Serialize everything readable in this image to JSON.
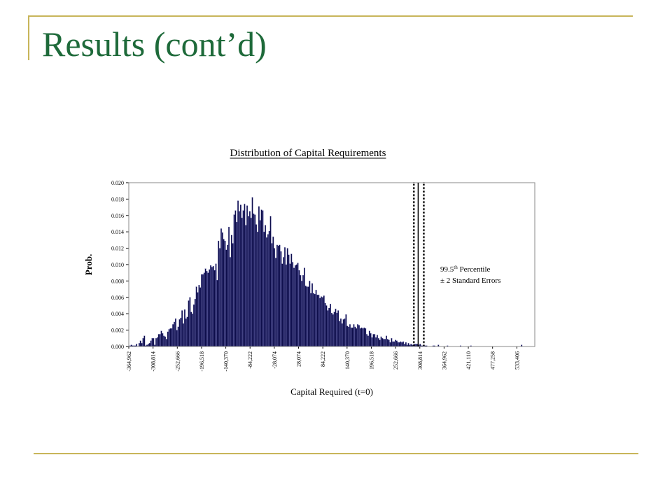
{
  "slide": {
    "title": "Results (cont’d)"
  },
  "colors": {
    "accent_line": "#c8b55a",
    "title": "#1e6a3a",
    "bars": "#0d0d4a",
    "bar_highlight": "#4a4aa0"
  },
  "chart_data": {
    "type": "bar",
    "title": "Distribution of Capital Requirements",
    "xlabel": "Capital Required (t=0)",
    "ylabel": "Prob.",
    "ylim": [
      0,
      0.02
    ],
    "yticks": [
      "0.000",
      "0.002",
      "0.004",
      "0.006",
      "0.008",
      "0.010",
      "0.012",
      "0.014",
      "0.016",
      "0.018",
      "0.020"
    ],
    "xticks": [
      "-364,962",
      "-308,814",
      "-252,666",
      "-196,518",
      "-140,370",
      "-84,222",
      "-28,074",
      "28,074",
      "84,222",
      "140,370",
      "196,518",
      "252,666",
      "308,814",
      "364,962",
      "421,110",
      "477,258",
      "533,406"
    ],
    "x_range": [
      -364962,
      575000
    ],
    "grid": false,
    "percentile_lines": {
      "percentile": 305000,
      "lower_se": 295000,
      "upper_se": 318000
    },
    "annotation": {
      "line1_prefix": "99.5",
      "line1_sup": "th",
      "line1_suffix": " Percentile",
      "line2": "± 2 Standard Errors"
    },
    "bins_x": [
      -361950,
      -358939,
      -355927,
      -352915,
      -349904,
      -346892,
      -343880,
      -340869,
      -337857,
      -334845,
      -331834,
      -328822,
      -325810,
      -322799,
      -319787,
      -316775,
      -313764,
      -310752,
      -307740,
      -304729,
      -301717,
      -298705,
      -295694,
      -292682,
      -289670,
      -286659,
      -283647,
      -280635,
      -277624,
      -274612,
      -271600,
      -268589,
      -265577,
      -262565,
      -259554,
      -256542,
      -253530,
      -250519,
      -247507,
      -244495,
      -241484,
      -238472,
      -235460,
      -232449,
      -229437,
      -226425,
      -223414,
      -220402,
      -217390,
      -214379,
      -211367,
      -208355,
      -205344,
      -202332,
      -199320,
      -196309,
      -193297,
      -190285,
      -187274,
      -184262,
      -181250,
      -178239,
      -175227,
      -172215,
      -169204,
      -166192,
      -163180,
      -160169,
      -157157,
      -154145,
      -151134,
      -148122,
      -145110,
      -142099,
      -139087,
      -136075,
      -133064,
      -130052,
      -127040,
      -124029,
      -121017,
      -118005,
      -114994,
      -111982,
      -108970,
      -105959,
      -102947,
      -99935,
      -96924,
      -93912,
      -90900,
      -87889,
      -84877,
      -81865,
      -78854,
      -75842,
      -72830,
      -69819,
      -66807,
      -63795,
      -60784,
      -57772,
      -54760,
      -51749,
      -48737,
      -45725,
      -42714,
      -39702,
      -36690,
      -33679,
      -30667,
      -27655,
      -24644,
      -21632,
      -18620,
      -15609,
      -12597,
      -9585,
      -6574,
      -3562,
      -550,
      2461,
      5473,
      8485,
      11496,
      14508,
      17520,
      20531,
      23543,
      26555,
      29566,
      32578,
      35590,
      38601,
      41613,
      44625,
      47636,
      50648,
      53660,
      56671,
      59683,
      62695,
      65706,
      68718,
      71730,
      74741,
      77753,
      80765,
      83776,
      86788,
      89800,
      92811,
      95823,
      98835,
      101846,
      104858,
      107870,
      110881,
      113893,
      116905,
      119916,
      122928,
      125940,
      128951,
      131963,
      134975,
      137986,
      140998,
      144010,
      147021,
      150033,
      153045,
      156056,
      159068,
      162080,
      165091,
      168103,
      171115,
      174126,
      177138,
      180150,
      183161,
      186173,
      189185,
      192196,
      195208,
      198220,
      201231,
      204243,
      207255,
      210266,
      213278,
      216290,
      219301,
      222313,
      225325,
      228336,
      231348,
      234360,
      237371,
      240383,
      243395,
      246406,
      249418,
      252430,
      255441,
      258453,
      261465,
      264476,
      267488,
      270500,
      273511,
      276523,
      279535,
      282546,
      285558,
      288570,
      291581,
      294593,
      297605,
      300616,
      303628,
      306640,
      309651,
      312663,
      315675,
      318686,
      321698,
      324710,
      327721,
      330733,
      333745,
      336756,
      339768,
      342780,
      345791,
      348803,
      351815,
      354826,
      357838,
      360850,
      363861,
      366873,
      369885,
      372896,
      375908,
      378920,
      381931,
      384943,
      387955,
      390966,
      393978,
      396990,
      400001,
      403013,
      406025,
      409036,
      412048,
      415060,
      418071,
      421083,
      424095,
      427106,
      430118,
      433130,
      436141,
      439153,
      442165,
      445176,
      448188,
      451200,
      454211,
      457223,
      460235,
      463246,
      466258,
      469270,
      472281,
      475293,
      478305,
      481316,
      484328,
      487340,
      490351,
      493363,
      496375,
      499386,
      502398,
      505410,
      508421,
      511433,
      514445,
      517456,
      520468,
      523480,
      526491,
      529503,
      532515,
      535526,
      538538,
      541550,
      544561,
      547573,
      550585,
      553596,
      556608,
      559620,
      562631,
      565643,
      568655,
      571666
    ],
    "bins_p": [
      0.0001,
      0.0002,
      0.0001,
      0.0001,
      0.0001,
      0.0003,
      0.0,
      0.0004,
      0.0007,
      0.0004,
      0.001,
      0.0013,
      0.0001,
      0.0002,
      0.0003,
      0.0004,
      0.0007,
      0.001,
      0.001,
      0.0002,
      0.001,
      0.0011,
      0.0015,
      0.0015,
      0.0019,
      0.0016,
      0.0013,
      0.0012,
      0.0009,
      0.0018,
      0.0021,
      0.0022,
      0.0022,
      0.0027,
      0.003,
      0.0034,
      0.002,
      0.0024,
      0.0033,
      0.0035,
      0.0044,
      0.0028,
      0.0045,
      0.0034,
      0.0036,
      0.0056,
      0.006,
      0.0042,
      0.004,
      0.0051,
      0.0058,
      0.0073,
      0.0066,
      0.0075,
      0.0072,
      0.0088,
      0.0088,
      0.009,
      0.0095,
      0.0092,
      0.009,
      0.0094,
      0.0099,
      0.0097,
      0.0098,
      0.0093,
      0.0101,
      0.0081,
      0.0129,
      0.012,
      0.0144,
      0.0139,
      0.0131,
      0.0129,
      0.0118,
      0.0124,
      0.0146,
      0.0109,
      0.0136,
      0.0126,
      0.0161,
      0.0166,
      0.0152,
      0.0178,
      0.0165,
      0.0173,
      0.0157,
      0.0166,
      0.0174,
      0.0148,
      0.0172,
      0.0159,
      0.0165,
      0.0157,
      0.0182,
      0.0162,
      0.0161,
      0.0149,
      0.014,
      0.0171,
      0.0154,
      0.0167,
      0.0166,
      0.014,
      0.0148,
      0.0133,
      0.0137,
      0.0141,
      0.0159,
      0.0126,
      0.0134,
      0.012,
      0.0108,
      0.0124,
      0.0123,
      0.0124,
      0.0116,
      0.0101,
      0.0109,
      0.0121,
      0.01,
      0.012,
      0.0112,
      0.0101,
      0.0113,
      0.0103,
      0.0096,
      0.0099,
      0.01,
      0.0102,
      0.0093,
      0.0087,
      0.008,
      0.0087,
      0.0096,
      0.0074,
      0.0073,
      0.0073,
      0.008,
      0.0065,
      0.0077,
      0.0065,
      0.0064,
      0.0069,
      0.0063,
      0.0063,
      0.0059,
      0.0061,
      0.006,
      0.0062,
      0.0053,
      0.005,
      0.0044,
      0.0047,
      0.0052,
      0.0041,
      0.0039,
      0.0042,
      0.0046,
      0.0041,
      0.0044,
      0.0031,
      0.0034,
      0.0028,
      0.0033,
      0.0034,
      0.0039,
      0.0025,
      0.0024,
      0.0027,
      0.0023,
      0.0023,
      0.0027,
      0.0024,
      0.0022,
      0.0027,
      0.0026,
      0.0022,
      0.0023,
      0.0022,
      0.0023,
      0.0022,
      0.0015,
      0.0013,
      0.0019,
      0.0016,
      0.0011,
      0.0015,
      0.0015,
      0.0011,
      0.0014,
      0.001,
      0.0008,
      0.0012,
      0.001,
      0.0009,
      0.0009,
      0.0013,
      0.0009,
      0.0008,
      0.0005,
      0.001,
      0.0006,
      0.0006,
      0.0008,
      0.0007,
      0.0005,
      0.0005,
      0.0006,
      0.0005,
      0.0006,
      0.0003,
      0.0005,
      0.0002,
      0.0004,
      0.0002,
      0.0003,
      0.0002,
      0.0002,
      0.0003,
      0.0003,
      0.0003,
      0.0002,
      0.0003,
      0.0001,
      0.0001,
      0.0001,
      0.0001,
      0.0001,
      0.0,
      0.0,
      0.0,
      0.0,
      0.0001,
      0.0001,
      0.0,
      0.0,
      0.0002,
      0.0,
      0.0,
      0.0,
      0.0,
      0.0,
      0.0,
      0.0001,
      0.0,
      0.0,
      0.0,
      0.0,
      0.0,
      0.0,
      0.0,
      0.0,
      0.0,
      0.0001,
      0.0,
      0.0,
      0.0,
      0.0,
      0.0,
      0.0,
      0.0,
      0.0001,
      0.0,
      0.0,
      0.0,
      0.0,
      0.0,
      0.0,
      0.0,
      0.0,
      0.0,
      0.0,
      0.0,
      0.0,
      0.0,
      0.0,
      0.0,
      0.0,
      0.0,
      0.0,
      0.0,
      0.0,
      0.0,
      0.0,
      0.0,
      0.0,
      0.0,
      0.0,
      0.0,
      0.0,
      0.0,
      0.0,
      0.0,
      0.0,
      0.0,
      0.0,
      0.0,
      0.0,
      0.0,
      0.0,
      0.0002
    ]
  }
}
